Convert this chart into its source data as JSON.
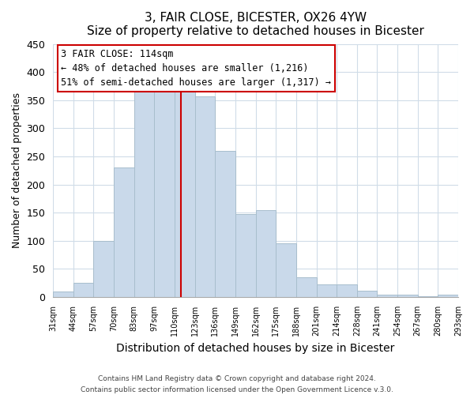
{
  "title": "3, FAIR CLOSE, BICESTER, OX26 4YW",
  "subtitle": "Size of property relative to detached houses in Bicester",
  "xlabel": "Distribution of detached houses by size in Bicester",
  "ylabel": "Number of detached properties",
  "bar_color": "#c9d9ea",
  "bar_edge_color": "#a8becd",
  "categories": [
    "31sqm",
    "44sqm",
    "57sqm",
    "70sqm",
    "83sqm",
    "97sqm",
    "110sqm",
    "123sqm",
    "136sqm",
    "149sqm",
    "162sqm",
    "175sqm",
    "188sqm",
    "201sqm",
    "214sqm",
    "228sqm",
    "241sqm",
    "254sqm",
    "267sqm",
    "280sqm",
    "293sqm"
  ],
  "values": [
    10,
    25,
    100,
    230,
    365,
    370,
    375,
    357,
    260,
    148,
    155,
    96,
    35,
    22,
    22,
    11,
    4,
    4,
    1,
    4
  ],
  "ylim": [
    0,
    450
  ],
  "yticks": [
    0,
    50,
    100,
    150,
    200,
    250,
    300,
    350,
    400,
    450
  ],
  "property_line_label": "3 FAIR CLOSE: 114sqm",
  "annotation_line1": "← 48% of detached houses are smaller (1,216)",
  "annotation_line2": "51% of semi-detached houses are larger (1,317) →",
  "annotation_box_color": "#ffffff",
  "annotation_box_edge": "#cc0000",
  "vline_color": "#cc0000",
  "grid_color": "#d0dce8",
  "footer1": "Contains HM Land Registry data © Crown copyright and database right 2024.",
  "footer2": "Contains public sector information licensed under the Open Government Licence v.3.0.",
  "background_color": "#ffffff",
  "plot_background": "#ffffff"
}
